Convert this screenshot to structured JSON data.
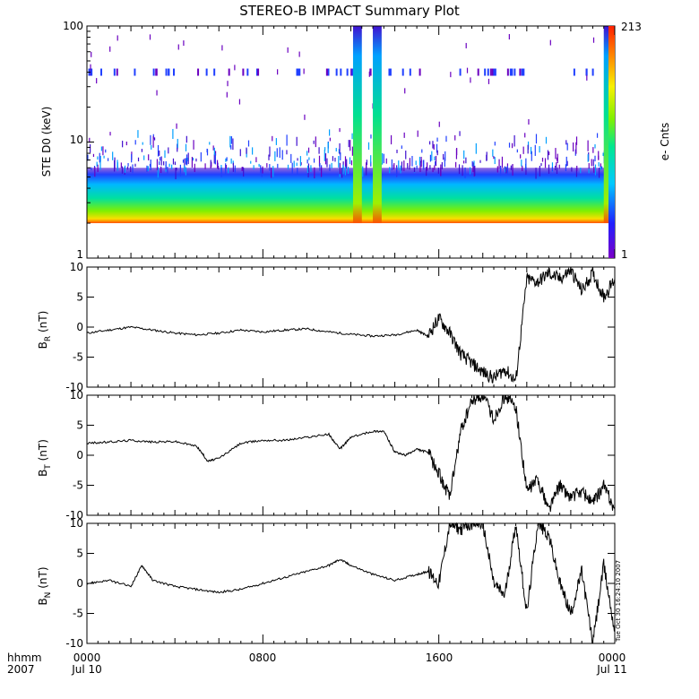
{
  "title": "STEREO-B IMPACT Summary Plot",
  "timestamp": "Tue Oct 30 16:24:10 2007",
  "x_axis": {
    "row_labels": [
      "hhmm",
      "2007"
    ],
    "ticks": [
      {
        "time": "0000",
        "date": "Jul 10"
      },
      {
        "time": "0800",
        "date": ""
      },
      {
        "time": "1600",
        "date": ""
      },
      {
        "time": "0000",
        "date": "Jul 11"
      }
    ]
  },
  "colors": {
    "line": "#000000",
    "colorbar": [
      "#7a00c8",
      "#2020ff",
      "#00c8ff",
      "#00e890",
      "#80f000",
      "#f8f000",
      "#ff8000",
      "#ff2000"
    ]
  },
  "chart_data": [
    {
      "type": "heatmap",
      "ylabel": "STE D0 (keV)",
      "y_scale": "log",
      "ylim": [
        1,
        100
      ],
      "y_ticks": [
        "1",
        "10",
        "100"
      ],
      "x_range_hours": [
        0,
        24
      ],
      "colorbar": {
        "label": "e- Cnts",
        "min": "1",
        "max": "213",
        "scale": "log"
      },
      "background_band_keV": [
        2,
        6
      ],
      "enhancements_hours": [
        {
          "start": 12.1,
          "end": 12.5,
          "top_keV": 100
        },
        {
          "start": 13.0,
          "end": 13.4,
          "top_keV": 100
        },
        {
          "start": 23.5,
          "end": 24.0,
          "top_keV": 100
        }
      ],
      "horizontal_streak_keV": 40
    },
    {
      "type": "line",
      "ylabel": "B",
      "ylabel_sub": "R",
      "ylabel_unit": " (nT)",
      "ylim": [
        -10,
        10
      ],
      "y_ticks": [
        "-10",
        "-5",
        "0",
        "5",
        "10"
      ],
      "x": [
        0,
        1,
        2,
        3,
        4,
        5,
        6,
        7,
        8,
        9,
        10,
        11,
        12,
        13,
        14,
        15,
        15.5,
        16,
        16.5,
        17,
        17.5,
        18,
        18.5,
        19,
        19.5,
        20,
        20.5,
        21,
        21.5,
        22,
        22.5,
        23,
        23.5,
        24
      ],
      "y": [
        -1,
        -0.5,
        0,
        -0.5,
        -1,
        -1.3,
        -1,
        -0.5,
        -0.8,
        -0.5,
        -0.3,
        -0.8,
        -1.2,
        -1.5,
        -1.3,
        -0.5,
        -1.5,
        1.5,
        -1,
        -4.5,
        -6,
        -7.5,
        -8.5,
        -7,
        -9,
        8,
        7.5,
        9,
        8,
        9.5,
        6,
        9,
        5,
        8
      ]
    },
    {
      "type": "line",
      "ylabel": "B",
      "ylabel_sub": "T",
      "ylabel_unit": " (nT)",
      "ylim": [
        -10,
        10
      ],
      "y_ticks": [
        "-10",
        "-5",
        "0",
        "5",
        "10"
      ],
      "x": [
        0,
        1,
        2,
        3,
        4,
        5,
        5.5,
        6,
        7,
        8,
        9,
        10,
        11,
        11.5,
        12,
        13,
        13.5,
        14,
        14.5,
        15,
        15.5,
        16,
        16.5,
        17,
        17.5,
        18,
        18.5,
        19,
        19.5,
        20,
        20.5,
        21,
        21.5,
        22,
        22.5,
        23,
        23.5,
        24
      ],
      "y": [
        2,
        2.2,
        2.5,
        2.2,
        2.3,
        1.5,
        -1,
        -0.5,
        2,
        2.5,
        2.5,
        3,
        3.5,
        1,
        3,
        4,
        4,
        0.5,
        0,
        1,
        0.5,
        -3,
        -7,
        4,
        9,
        10,
        6,
        10,
        8,
        -6,
        -4,
        -9,
        -5,
        -7,
        -6,
        -8,
        -5,
        -9
      ]
    },
    {
      "type": "line",
      "ylabel": "B",
      "ylabel_sub": "N",
      "ylabel_unit": " (nT)",
      "ylim": [
        -10,
        10
      ],
      "y_ticks": [
        "-10",
        "-5",
        "0",
        "5",
        "10"
      ],
      "x": [
        0,
        1,
        2,
        2.5,
        3,
        4,
        5,
        6,
        7,
        8,
        9,
        10,
        11,
        11.5,
        12,
        13,
        14,
        15,
        15.5,
        16,
        16.5,
        17,
        17.5,
        18,
        18.5,
        19,
        19.5,
        20,
        20.5,
        21,
        21.5,
        22,
        22.5,
        23,
        23.5,
        24
      ],
      "y": [
        0,
        0.5,
        -0.5,
        3,
        0.5,
        -0.5,
        -1,
        -1.5,
        -1,
        0,
        1,
        2,
        3,
        4,
        3,
        1.5,
        0.5,
        1.5,
        2,
        0,
        10,
        9,
        10,
        10,
        0,
        -2,
        10,
        -5,
        10,
        8,
        0,
        -5,
        2,
        -10,
        3,
        -8
      ]
    }
  ]
}
